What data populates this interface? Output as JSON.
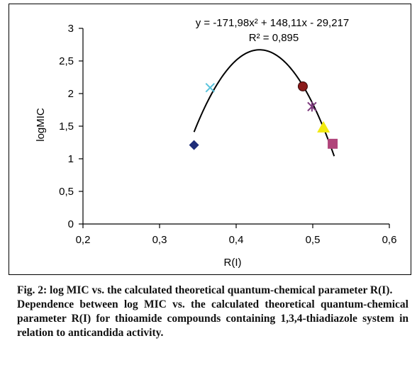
{
  "chart_data": {
    "type": "scatter",
    "xlabel": "R(I)",
    "ylabel": "logMIC",
    "xlim": [
      0.2,
      0.6
    ],
    "ylim": [
      0,
      3
    ],
    "x_ticks": [
      "0,2",
      "0,3",
      "0,4",
      "0,5",
      "0,6"
    ],
    "y_ticks": [
      "0",
      "0,5",
      "1",
      "1,5",
      "2",
      "2,5",
      "3"
    ],
    "x_tick_values": [
      0.2,
      0.3,
      0.4,
      0.5,
      0.6
    ],
    "y_tick_values": [
      0,
      0.5,
      1,
      1.5,
      2,
      2.5,
      3
    ],
    "grid": false,
    "points": [
      {
        "x": 0.345,
        "y": 1.21,
        "marker": "diamond",
        "color": "#1f2d7a"
      },
      {
        "x": 0.366,
        "y": 2.09,
        "marker": "x",
        "color": "#59c3dc"
      },
      {
        "x": 0.487,
        "y": 2.11,
        "marker": "circle",
        "color": "#8b1a1a"
      },
      {
        "x": 0.499,
        "y": 1.8,
        "marker": "star",
        "color": "#7d3a7d"
      },
      {
        "x": 0.514,
        "y": 1.48,
        "marker": "triangle",
        "color": "#f2ea10"
      },
      {
        "x": 0.526,
        "y": 1.23,
        "marker": "square",
        "color": "#b0447a"
      }
    ],
    "trendline": {
      "type": "polynomial",
      "coefficients": [
        -171.98,
        148.11,
        -29.217
      ],
      "x_range": [
        0.345,
        0.528
      ],
      "equation_label": "y = -171,98x² + 148,11x - 29,217",
      "r2_label": "R² = 0,895"
    }
  },
  "caption": {
    "title": "Fig. 2: log MIC vs. the calculated theoretical quantum-chemical parameter R(I).",
    "description": "Dependence between log MIC vs. the calculated theoretical quantum-chemical parameter R(I) for thioamide compounds containing 1,3,4-thiadiazole system in relation to anticandida activity."
  }
}
